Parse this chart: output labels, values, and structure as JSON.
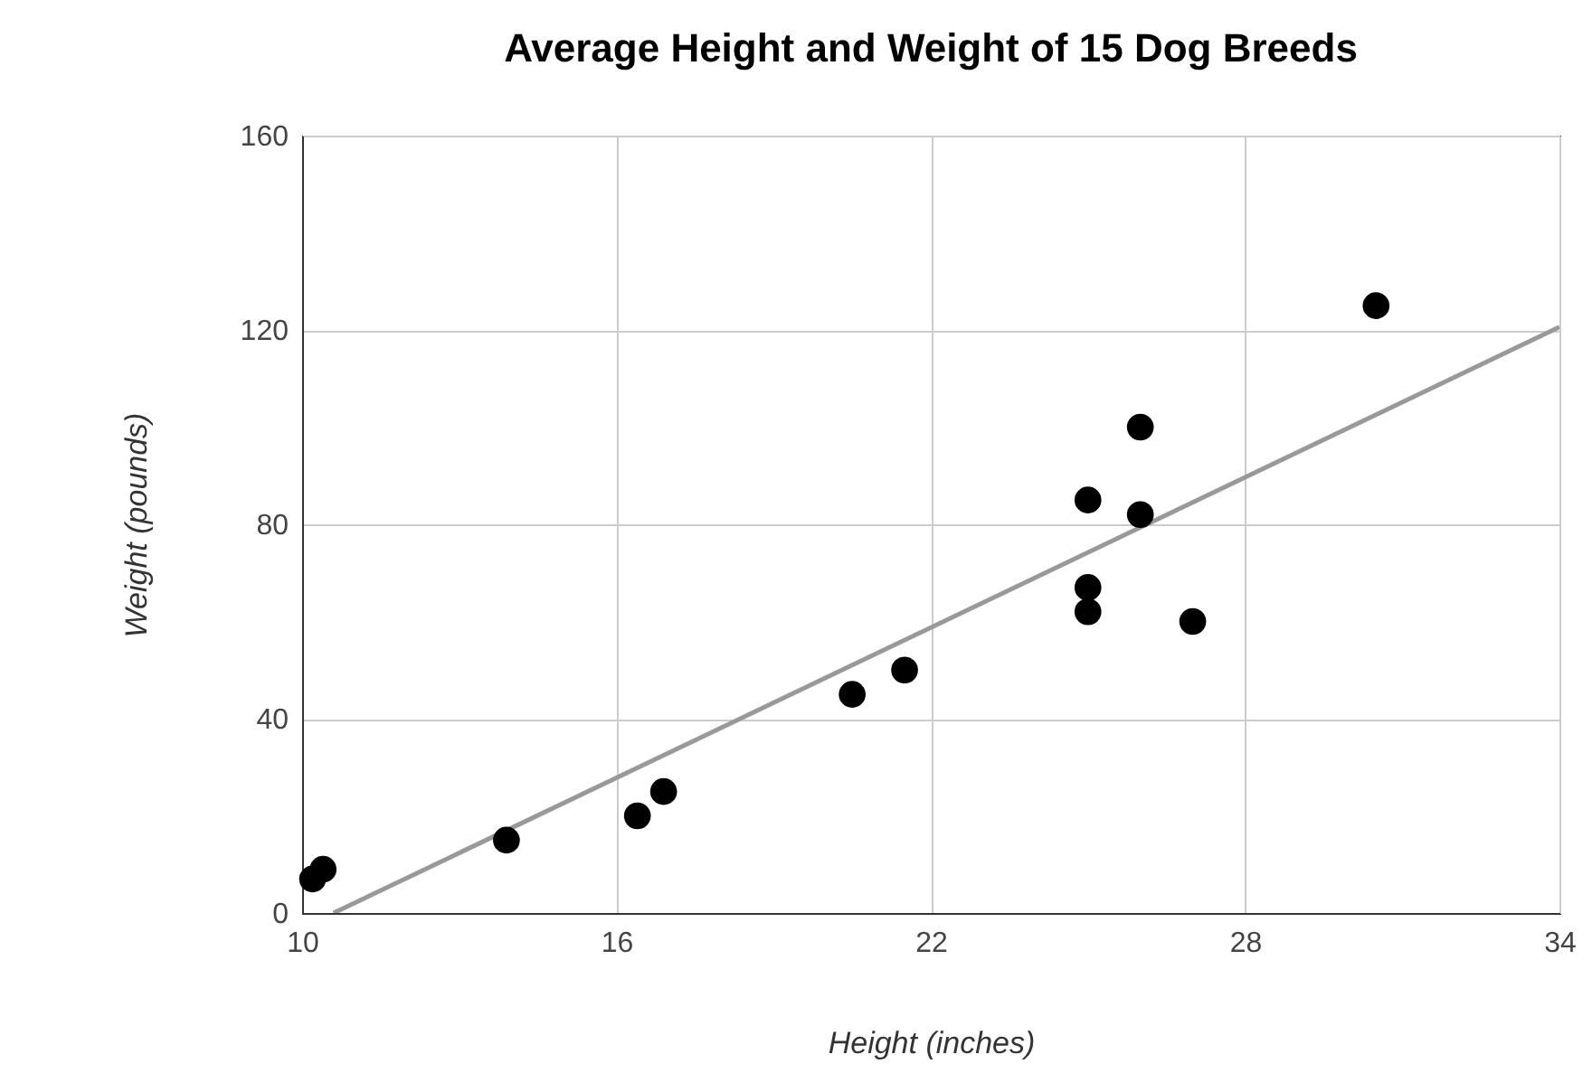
{
  "chart_data": {
    "type": "scatter",
    "title": "Average Height and Weight of 15 Dog Breeds",
    "xlabel": "Height (inches)",
    "ylabel": "Weight (pounds)",
    "xlim": [
      10,
      34
    ],
    "xticks": [
      10,
      16,
      22,
      28,
      34
    ],
    "ylim": [
      0,
      160
    ],
    "yticks": [
      0,
      40,
      80,
      120,
      160
    ],
    "grid": true,
    "series": [
      {
        "marker": "circle",
        "color": "#000000",
        "x": [
          10.2,
          10.4,
          13.9,
          16.4,
          16.9,
          20.5,
          21.5,
          25.0,
          25.0,
          25.0,
          26.0,
          26.0,
          27.0,
          30.5
        ],
        "values": [
          7,
          9,
          15,
          20,
          25,
          45,
          50,
          85,
          67,
          62,
          100,
          82,
          60,
          125
        ]
      },
      {
        "type": "line",
        "color": "#999999",
        "line_style": "solid",
        "x": [
          10.6,
          34
        ],
        "values": [
          0,
          120.6
        ]
      }
    ]
  }
}
